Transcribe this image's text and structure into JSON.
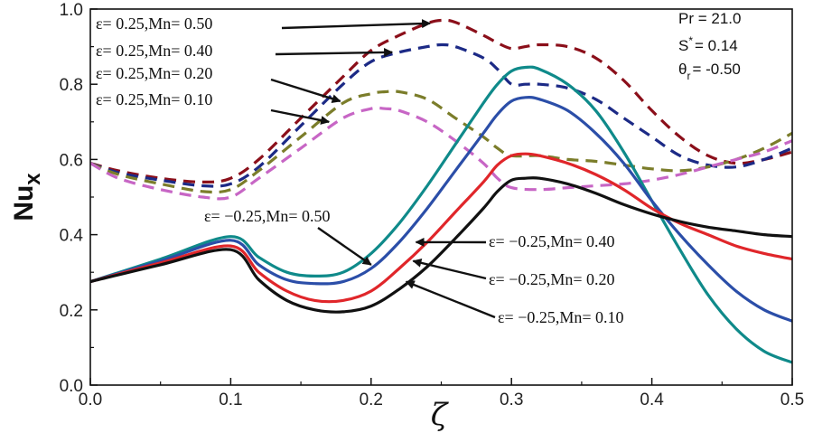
{
  "chart_data": {
    "type": "line",
    "xlabel": "ζ",
    "ylabel": "Nu",
    "ylabel_sub": "x",
    "xlim": [
      0.0,
      0.5
    ],
    "ylim": [
      0.0,
      1.0
    ],
    "x_ticks": [
      "0.0",
      "0.1",
      "0.2",
      "0.3",
      "0.4",
      "0.5"
    ],
    "y_ticks": [
      "0.0",
      "0.2",
      "0.4",
      "0.6",
      "0.8",
      "1.0"
    ],
    "parameters": {
      "pr": "Pr = 21.0",
      "s_prefix": "S",
      "s_sup": "*",
      "s_value": "= 0.14",
      "theta_prefix": "θ",
      "theta_sub": "r",
      "theta_value": "= -0.50"
    },
    "series": [
      {
        "label": "ε= 0.25,Mn= 0.50",
        "style": "dashed",
        "color": "#8b0f1a",
        "x": [
          0,
          0.02,
          0.05,
          0.08,
          0.1,
          0.12,
          0.15,
          0.18,
          0.2,
          0.22,
          0.24,
          0.25,
          0.26,
          0.28,
          0.29,
          0.3,
          0.31,
          0.32,
          0.34,
          0.36,
          0.38,
          0.4,
          0.42,
          0.44,
          0.46,
          0.48,
          0.5
        ],
        "y": [
          0.59,
          0.57,
          0.55,
          0.54,
          0.55,
          0.6,
          0.71,
          0.82,
          0.89,
          0.93,
          0.962,
          0.97,
          0.965,
          0.93,
          0.91,
          0.895,
          0.9,
          0.905,
          0.9,
          0.87,
          0.81,
          0.73,
          0.66,
          0.61,
          0.59,
          0.6,
          0.62
        ]
      },
      {
        "label": "ε= 0.25,Mn= 0.40",
        "style": "dashed",
        "color": "#1c2a86",
        "x": [
          0,
          0.02,
          0.05,
          0.08,
          0.1,
          0.12,
          0.15,
          0.18,
          0.2,
          0.22,
          0.24,
          0.25,
          0.26,
          0.28,
          0.29,
          0.3,
          0.31,
          0.32,
          0.34,
          0.36,
          0.38,
          0.4,
          0.42,
          0.44,
          0.46,
          0.48,
          0.5
        ],
        "y": [
          0.59,
          0.565,
          0.545,
          0.53,
          0.535,
          0.58,
          0.69,
          0.8,
          0.86,
          0.885,
          0.9,
          0.905,
          0.9,
          0.87,
          0.84,
          0.8,
          0.8,
          0.8,
          0.79,
          0.76,
          0.71,
          0.66,
          0.61,
          0.585,
          0.58,
          0.6,
          0.63
        ]
      },
      {
        "label": "ε= 0.25,Mn= 0.20",
        "style": "dashed",
        "color": "#7b7d2a",
        "x": [
          0,
          0.02,
          0.05,
          0.08,
          0.1,
          0.12,
          0.15,
          0.18,
          0.2,
          0.21,
          0.22,
          0.24,
          0.26,
          0.28,
          0.29,
          0.3,
          0.32,
          0.34,
          0.36,
          0.38,
          0.4,
          0.42,
          0.44,
          0.46,
          0.48,
          0.5
        ],
        "y": [
          0.59,
          0.56,
          0.535,
          0.515,
          0.52,
          0.57,
          0.66,
          0.75,
          0.775,
          0.78,
          0.78,
          0.76,
          0.71,
          0.66,
          0.63,
          0.61,
          0.61,
          0.6,
          0.595,
          0.585,
          0.575,
          0.57,
          0.58,
          0.6,
          0.63,
          0.67
        ]
      },
      {
        "label": "ε= 0.25,Mn= 0.10",
        "style": "dashed",
        "color": "#c766c5",
        "x": [
          0,
          0.02,
          0.05,
          0.08,
          0.1,
          0.12,
          0.15,
          0.18,
          0.2,
          0.21,
          0.22,
          0.24,
          0.26,
          0.28,
          0.29,
          0.3,
          0.32,
          0.34,
          0.36,
          0.38,
          0.4,
          0.42,
          0.44,
          0.46,
          0.48,
          0.5
        ],
        "y": [
          0.59,
          0.55,
          0.52,
          0.5,
          0.5,
          0.55,
          0.63,
          0.71,
          0.735,
          0.735,
          0.73,
          0.7,
          0.65,
          0.59,
          0.55,
          0.525,
          0.52,
          0.525,
          0.53,
          0.535,
          0.545,
          0.56,
          0.58,
          0.6,
          0.62,
          0.65
        ]
      },
      {
        "label": "ε= −0.25,Mn= 0.50",
        "style": "solid",
        "color": "#0f8a8a",
        "x": [
          0,
          0.05,
          0.1,
          0.12,
          0.14,
          0.16,
          0.18,
          0.2,
          0.22,
          0.24,
          0.26,
          0.28,
          0.29,
          0.3,
          0.31,
          0.32,
          0.34,
          0.36,
          0.38,
          0.4,
          0.42,
          0.44,
          0.46,
          0.48,
          0.5
        ],
        "y": [
          0.275,
          0.335,
          0.395,
          0.34,
          0.3,
          0.29,
          0.3,
          0.35,
          0.43,
          0.53,
          0.64,
          0.75,
          0.8,
          0.835,
          0.845,
          0.84,
          0.8,
          0.73,
          0.62,
          0.49,
          0.36,
          0.24,
          0.15,
          0.09,
          0.06
        ]
      },
      {
        "label": "ε= −0.25,Mn= 0.40",
        "style": "solid",
        "color": "#2b4ea8",
        "x": [
          0,
          0.05,
          0.1,
          0.12,
          0.14,
          0.16,
          0.18,
          0.2,
          0.22,
          0.24,
          0.26,
          0.28,
          0.29,
          0.3,
          0.31,
          0.32,
          0.34,
          0.36,
          0.38,
          0.4,
          0.42,
          0.44,
          0.46,
          0.48,
          0.5
        ],
        "y": [
          0.275,
          0.33,
          0.385,
          0.32,
          0.28,
          0.27,
          0.275,
          0.31,
          0.38,
          0.47,
          0.57,
          0.67,
          0.72,
          0.755,
          0.765,
          0.76,
          0.73,
          0.67,
          0.59,
          0.49,
          0.4,
          0.32,
          0.25,
          0.2,
          0.17
        ]
      },
      {
        "label": "ε= −0.25,Mn= 0.20",
        "style": "solid",
        "color": "#e0262a",
        "x": [
          0,
          0.05,
          0.1,
          0.12,
          0.14,
          0.16,
          0.18,
          0.2,
          0.22,
          0.24,
          0.26,
          0.28,
          0.29,
          0.3,
          0.31,
          0.32,
          0.34,
          0.36,
          0.38,
          0.4,
          0.42,
          0.44,
          0.46,
          0.48,
          0.5
        ],
        "y": [
          0.275,
          0.325,
          0.37,
          0.3,
          0.25,
          0.225,
          0.225,
          0.25,
          0.31,
          0.38,
          0.46,
          0.54,
          0.585,
          0.61,
          0.615,
          0.61,
          0.59,
          0.56,
          0.52,
          0.47,
          0.43,
          0.4,
          0.37,
          0.35,
          0.335
        ]
      },
      {
        "label": "ε= −0.25,Mn= 0.10",
        "style": "solid",
        "color": "#111111",
        "x": [
          0,
          0.05,
          0.1,
          0.12,
          0.14,
          0.16,
          0.18,
          0.2,
          0.22,
          0.24,
          0.26,
          0.28,
          0.29,
          0.3,
          0.31,
          0.32,
          0.34,
          0.36,
          0.38,
          0.4,
          0.42,
          0.44,
          0.46,
          0.48,
          0.5
        ],
        "y": [
          0.275,
          0.32,
          0.36,
          0.28,
          0.225,
          0.2,
          0.195,
          0.21,
          0.255,
          0.315,
          0.39,
          0.47,
          0.515,
          0.545,
          0.55,
          0.55,
          0.535,
          0.51,
          0.48,
          0.455,
          0.435,
          0.42,
          0.41,
          0.4,
          0.395
        ]
      }
    ],
    "annotations": [
      {
        "series": 0,
        "text": "ε= 0.25,Mn= 0.50",
        "x": 0.242,
        "y": 0.962
      },
      {
        "series": 1,
        "text": "ε= 0.25,Mn= 0.40",
        "x": 0.215,
        "y": 0.885
      },
      {
        "series": 2,
        "text": "ε= 0.25,Mn= 0.20",
        "x": 0.178,
        "y": 0.755
      },
      {
        "series": 3,
        "text": "ε= 0.25,Mn= 0.10",
        "x": 0.17,
        "y": 0.7
      },
      {
        "series": 4,
        "text": "ε= −0.25,Mn= 0.50",
        "x": 0.2,
        "y": 0.32
      },
      {
        "series": 5,
        "text": "ε= −0.25,Mn= 0.40",
        "x": 0.232,
        "y": 0.38
      },
      {
        "series": 6,
        "text": "ε= −0.25,Mn= 0.20",
        "x": 0.23,
        "y": 0.33
      },
      {
        "series": 7,
        "text": "ε= −0.25,Mn= 0.10",
        "x": 0.225,
        "y": 0.275
      }
    ]
  }
}
